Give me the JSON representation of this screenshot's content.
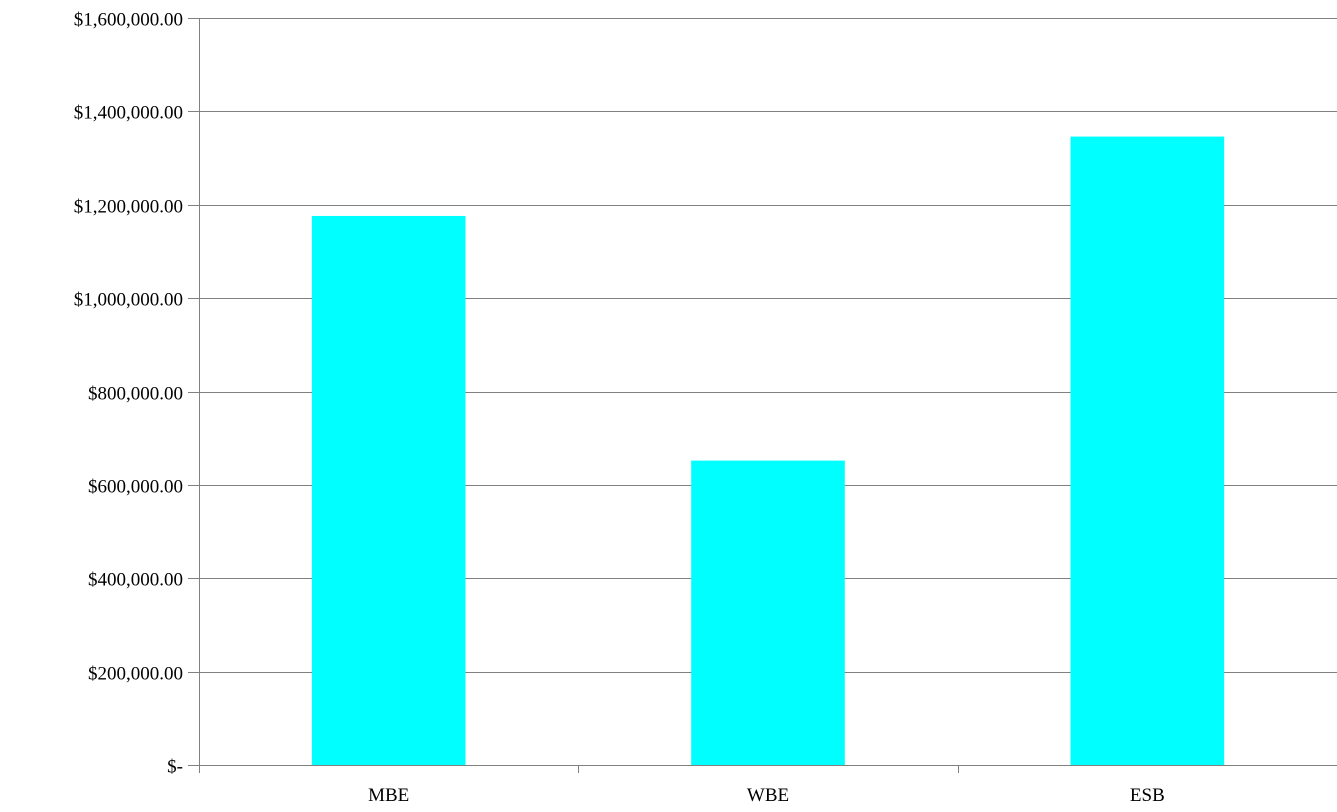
{
  "chart_data": {
    "type": "bar",
    "categories": [
      "MBE",
      "WBE",
      "ESB"
    ],
    "values": [
      1176000,
      652000,
      1346000
    ],
    "ylim": [
      0,
      1600000
    ],
    "yticks": [
      {
        "value": 0,
        "label": "$-"
      },
      {
        "value": 200000,
        "label": "$200,000.00"
      },
      {
        "value": 400000,
        "label": "$400,000.00"
      },
      {
        "value": 600000,
        "label": "$600,000.00"
      },
      {
        "value": 800000,
        "label": "$800,000.00"
      },
      {
        "value": 1000000,
        "label": "$1,000,000.00"
      },
      {
        "value": 1200000,
        "label": "$1,200,000.00"
      },
      {
        "value": 1400000,
        "label": "$1,400,000.00"
      },
      {
        "value": 1600000,
        "label": "$1,600,000.00"
      }
    ],
    "title": "",
    "xlabel": "",
    "ylabel": "",
    "grid": true,
    "legend": "none",
    "colors": {
      "bar": "#00FFFF",
      "grid": "#808080",
      "axis": "#808080",
      "text": "#000000"
    }
  }
}
